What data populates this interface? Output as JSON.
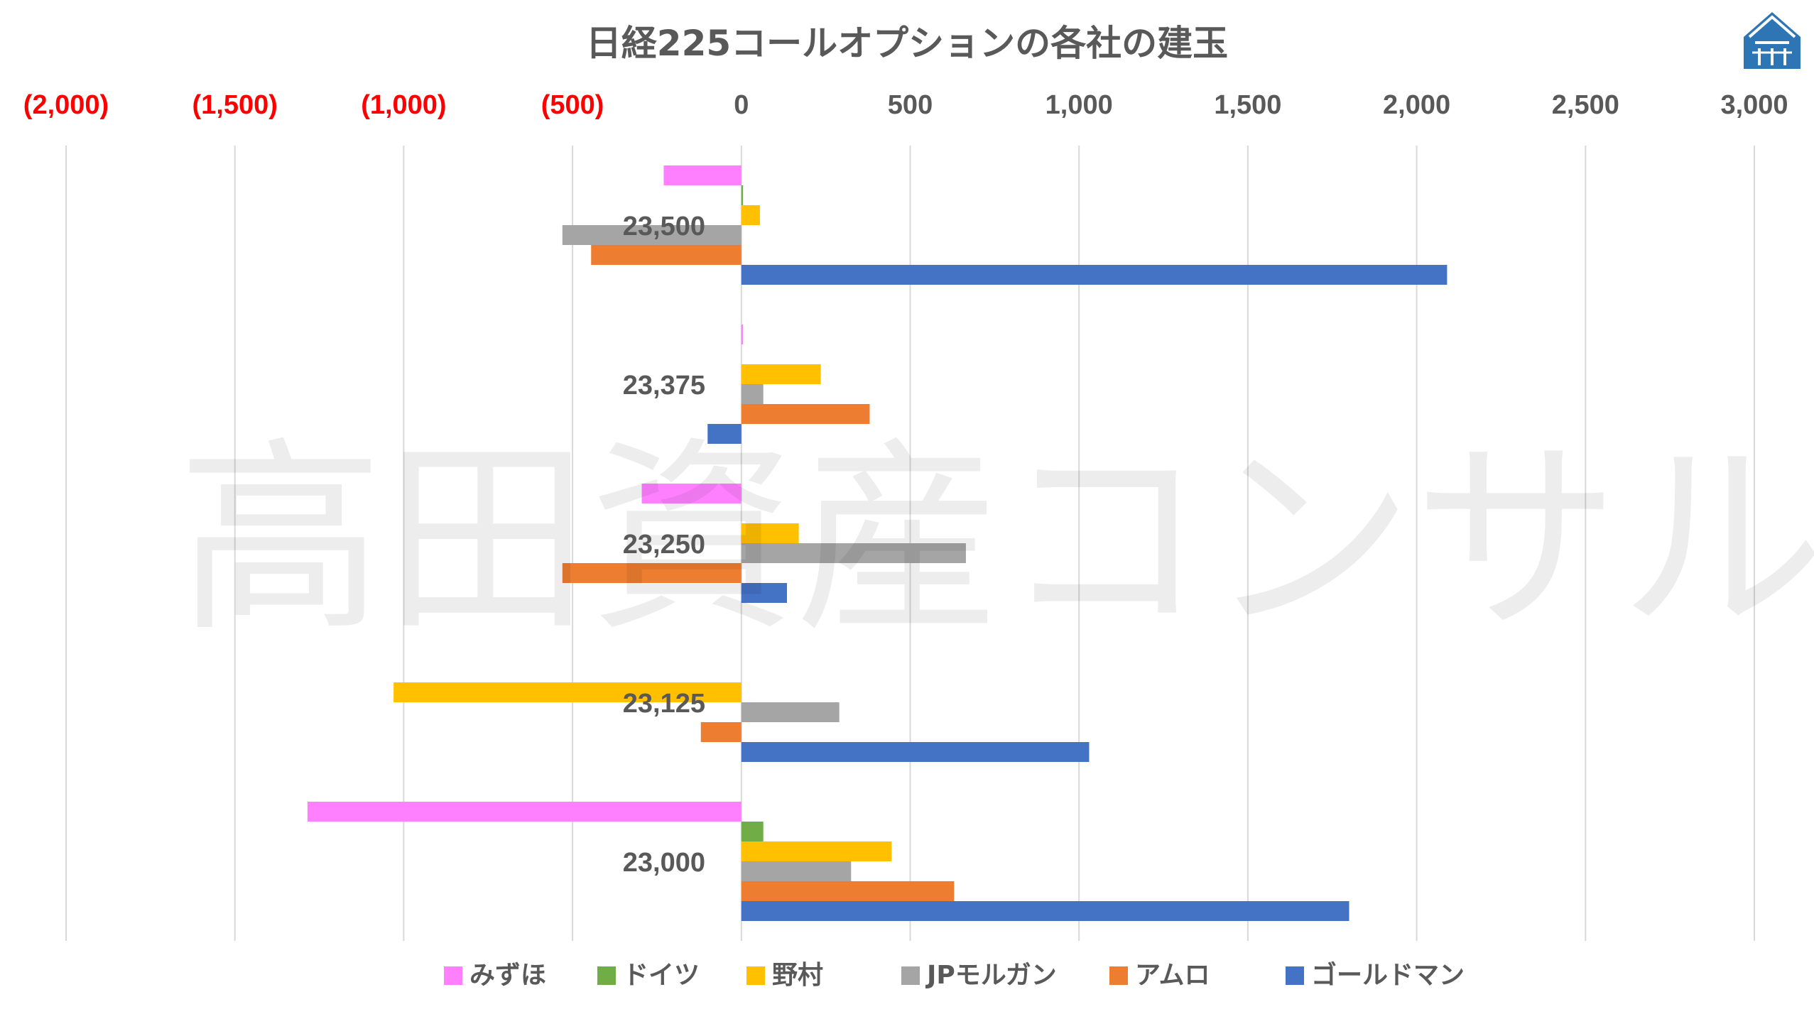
{
  "chart_data": {
    "type": "bar",
    "orientation": "horizontal",
    "title": "日経225コールオプションの各社の建玉",
    "watermark": "高田資産コンサル",
    "xlim": [
      -2000,
      3000
    ],
    "x_ticks": [
      -2000,
      -1500,
      -1000,
      -500,
      0,
      500,
      1000,
      1500,
      2000,
      2500,
      3000
    ],
    "x_tick_labels": [
      "(2,000)",
      "(1,500)",
      "(1,000)",
      "(500)",
      "0",
      "500",
      "1,000",
      "1,500",
      "2,000",
      "2,500",
      "3,000"
    ],
    "negative_tick_color": "#ff0000",
    "positive_tick_color": "#595959",
    "x_axis_position": "top",
    "grid": true,
    "legend_position": "bottom",
    "categories": [
      "23,500",
      "23,375",
      "23,250",
      "23,125",
      "23,000"
    ],
    "series": [
      {
        "name": "みずほ",
        "color": "#ff80ff",
        "values": [
          -230,
          5,
          -295,
          0,
          -1285
        ]
      },
      {
        "name": "ドイツ",
        "color": "#70ad47",
        "values": [
          5,
          0,
          0,
          0,
          65
        ]
      },
      {
        "name": "野村",
        "color": "#ffc000",
        "values": [
          55,
          235,
          170,
          -1030,
          445
        ]
      },
      {
        "name": "JPモルガン",
        "color": "#a5a5a5",
        "values": [
          -530,
          65,
          665,
          290,
          325
        ]
      },
      {
        "name": "アムロ",
        "color": "#ed7d31",
        "values": [
          -445,
          380,
          -530,
          -120,
          630
        ]
      },
      {
        "name": "ゴールドマン",
        "color": "#4472c4",
        "values": [
          2090,
          -100,
          135,
          1030,
          1800
        ]
      }
    ]
  },
  "logo": {
    "name": "house-logo-icon",
    "color": "#2e75b6"
  }
}
